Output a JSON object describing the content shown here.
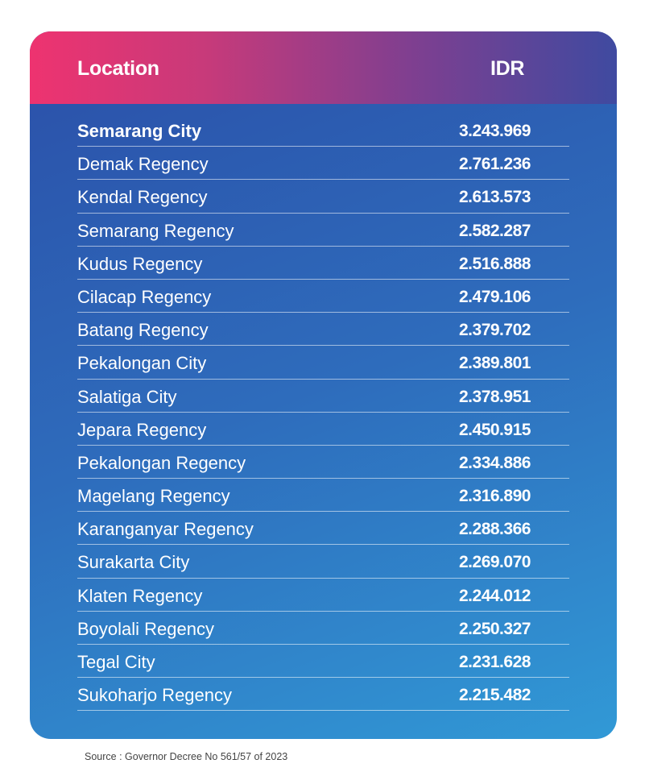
{
  "table": {
    "header": {
      "location": "Location",
      "idr": "IDR"
    },
    "rows": [
      {
        "location": "Semarang City",
        "idr": "3.243.969"
      },
      {
        "location": "Demak Regency",
        "idr": "2.761.236"
      },
      {
        "location": "Kendal Regency",
        "idr": "2.613.573"
      },
      {
        "location": "Semarang Regency",
        "idr": "2.582.287"
      },
      {
        "location": "Kudus Regency",
        "idr": "2.516.888"
      },
      {
        "location": "Cilacap Regency",
        "idr": "2.479.106"
      },
      {
        "location": "Batang Regency",
        "idr": "2.379.702"
      },
      {
        "location": "Pekalongan City",
        "idr": "2.389.801"
      },
      {
        "location": "Salatiga City",
        "idr": "2.378.951"
      },
      {
        "location": "Jepara Regency",
        "idr": "2.450.915"
      },
      {
        "location": "Pekalongan Regency",
        "idr": "2.334.886"
      },
      {
        "location": "Magelang Regency",
        "idr": "2.316.890"
      },
      {
        "location": "Karanganyar Regency",
        "idr": "2.288.366"
      },
      {
        "location": "Surakarta City",
        "idr": "2.269.070"
      },
      {
        "location": "Klaten Regency",
        "idr": "2.244.012"
      },
      {
        "location": "Boyolali Regency",
        "idr": "2.250.327"
      },
      {
        "location": "Tegal City",
        "idr": "2.231.628"
      },
      {
        "location": "Sukoharjo Regency",
        "idr": "2.215.482"
      }
    ]
  },
  "source": "Source : Governor Decree No 561/57 of 2023",
  "colors": {
    "header_gradient_start": "#ee3370",
    "header_gradient_end": "#3f4aa0",
    "body_gradient_start": "#2b4fa8",
    "body_gradient_end": "#3199d6",
    "text": "#ffffff"
  }
}
